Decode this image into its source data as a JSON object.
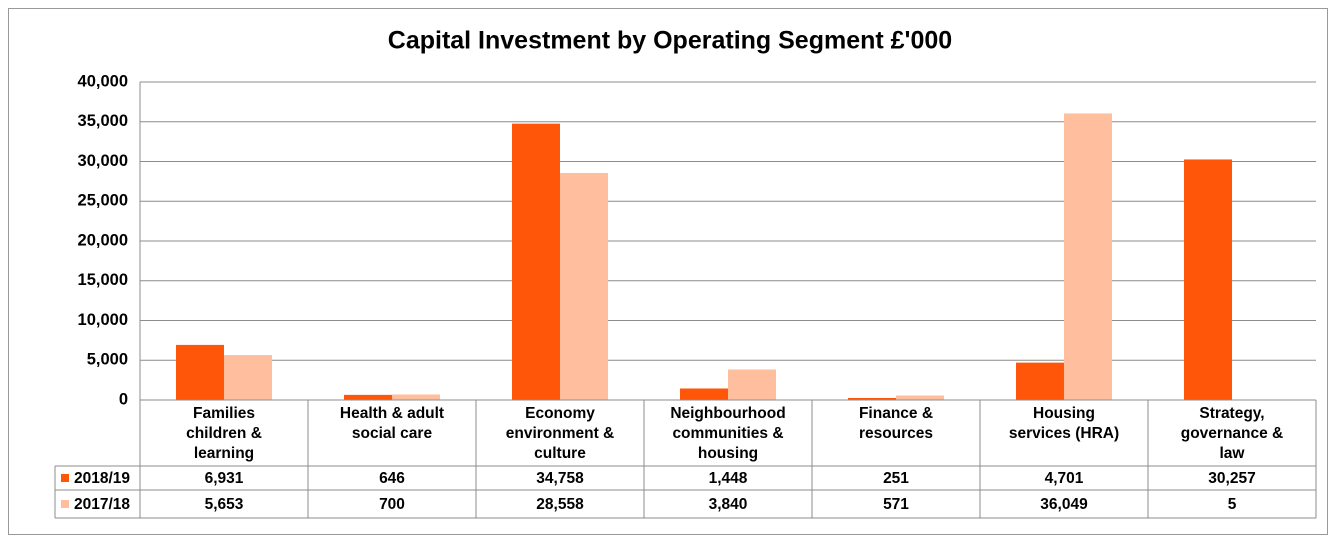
{
  "chart_data": {
    "type": "bar",
    "title": "Capital Investment by Operating Segment £'000",
    "categories": [
      "Families children & learning",
      "Health & adult social care",
      "Economy environment & culture",
      "Neighbourhood communities & housing",
      "Finance & resources",
      "Housing services (HRA)",
      "Strategy, governance & law"
    ],
    "series": [
      {
        "name": "2018/19",
        "color": "#ff560a",
        "values": [
          6931,
          646,
          34758,
          1448,
          251,
          4701,
          30257
        ],
        "value_labels": [
          "6,931",
          "646",
          "34,758",
          "1,448",
          "251",
          "4,701",
          "30,257"
        ]
      },
      {
        "name": "2017/18",
        "color": "#ffbf9f",
        "values": [
          5653,
          700,
          28558,
          3840,
          571,
          36049,
          5
        ],
        "value_labels": [
          "5,653",
          "700",
          "28,558",
          "3,840",
          "571",
          "36,049",
          "5"
        ]
      }
    ],
    "ylim": [
      0,
      40000
    ],
    "yticks": [
      0,
      {
        "value": 5000,
        "label": "5,000"
      },
      {
        "value": 10000,
        "label": "10,000"
      },
      {
        "value": 15000,
        "label": "15,000"
      },
      {
        "value": 20000,
        "label": "20,000"
      },
      {
        "value": 25000,
        "label": "25,000"
      },
      {
        "value": 30000,
        "label": "30,000"
      },
      {
        "value": 35000,
        "label": "35,000"
      },
      {
        "value": 40000,
        "label": "40,000"
      }
    ],
    "grid": true
  }
}
